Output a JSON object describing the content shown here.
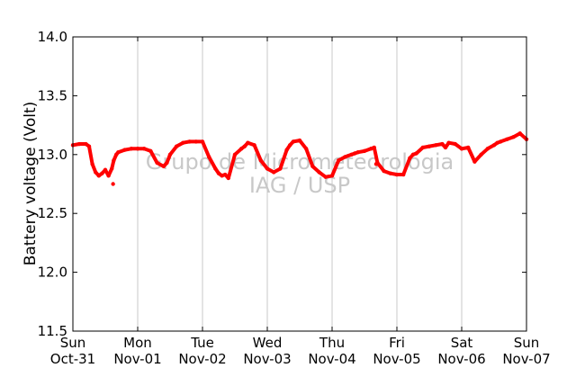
{
  "chart_data": {
    "type": "scatter",
    "title": "",
    "xlabel": "",
    "ylabel": "Battery voltage (Volt)",
    "ylim": [
      11.5,
      14.0
    ],
    "xlim": [
      0,
      7
    ],
    "grid": "vertical",
    "watermark": [
      "Grupo de Micrometeorologia",
      "IAG / USP"
    ],
    "y_ticks": [
      {
        "value": 11.5,
        "label": "11.5"
      },
      {
        "value": 12.0,
        "label": "12.0"
      },
      {
        "value": 12.5,
        "label": "12.5"
      },
      {
        "value": 13.0,
        "label": "13.0"
      },
      {
        "value": 13.5,
        "label": "13.5"
      },
      {
        "value": 14.0,
        "label": "14.0"
      }
    ],
    "x_ticks": [
      {
        "value": 0,
        "day": "Sun",
        "date": "Oct-31"
      },
      {
        "value": 1,
        "day": "Mon",
        "date": "Nov-01"
      },
      {
        "value": 2,
        "day": "Tue",
        "date": "Nov-02"
      },
      {
        "value": 3,
        "day": "Wed",
        "date": "Nov-03"
      },
      {
        "value": 4,
        "day": "Thu",
        "date": "Nov-04"
      },
      {
        "value": 5,
        "day": "Fri",
        "date": "Nov-05"
      },
      {
        "value": 6,
        "day": "Sat",
        "date": "Nov-06"
      },
      {
        "value": 7,
        "day": "Sun",
        "date": "Nov-07"
      }
    ],
    "series_color": "#ff0000",
    "series": [
      {
        "x": [
          0.0,
          0.1,
          0.2,
          0.25,
          0.3,
          0.35,
          0.4,
          0.45,
          0.5,
          0.55,
          0.6,
          0.63,
          0.67,
          0.7,
          0.8,
          0.9,
          1.0,
          1.1,
          1.2,
          1.3,
          1.4,
          1.45,
          1.5,
          1.6,
          1.7,
          1.8,
          1.9,
          2.0,
          2.1,
          2.2,
          2.25,
          2.3,
          2.35,
          2.4,
          2.5,
          2.6,
          2.65,
          2.7,
          2.8,
          2.9,
          3.0,
          3.1,
          3.2,
          3.3,
          3.35,
          3.4,
          3.5,
          3.6,
          3.7,
          3.8,
          3.9,
          4.0,
          4.1,
          4.2,
          4.3,
          4.35,
          4.4,
          4.5,
          4.6,
          4.65,
          4.7,
          4.8,
          4.9,
          5.0,
          5.1,
          5.2,
          5.25,
          5.3,
          5.4,
          5.5,
          5.6,
          5.7,
          5.75,
          5.8,
          5.9,
          6.0,
          6.1,
          6.2,
          6.3,
          6.4,
          6.5,
          6.55,
          6.6,
          6.7,
          6.8,
          6.9,
          7.0
        ],
        "y": [
          13.08,
          13.09,
          13.09,
          13.07,
          12.92,
          12.85,
          12.82,
          12.84,
          12.87,
          12.82,
          12.88,
          12.95,
          13.0,
          13.02,
          13.04,
          13.05,
          13.05,
          13.05,
          13.03,
          12.93,
          12.9,
          12.93,
          13.0,
          13.07,
          13.1,
          13.11,
          13.11,
          13.11,
          12.98,
          12.88,
          12.84,
          12.82,
          12.83,
          12.8,
          13.0,
          13.05,
          13.07,
          13.1,
          13.08,
          12.95,
          12.88,
          12.85,
          12.88,
          13.04,
          13.08,
          13.11,
          13.12,
          13.05,
          12.9,
          12.85,
          12.81,
          12.82,
          12.95,
          12.98,
          13.0,
          13.01,
          13.02,
          13.03,
          13.05,
          13.06,
          12.93,
          12.86,
          12.84,
          12.83,
          12.83,
          12.97,
          13.0,
          13.01,
          13.06,
          13.07,
          13.08,
          13.09,
          13.06,
          13.1,
          13.09,
          13.05,
          13.06,
          12.94,
          13.0,
          13.05,
          13.08,
          13.1,
          13.11,
          13.13,
          13.15,
          13.18,
          13.13
        ]
      }
    ],
    "outliers": [
      {
        "x": 0.62,
        "y": 12.75
      },
      {
        "x": 4.68,
        "y": 12.92
      }
    ]
  }
}
